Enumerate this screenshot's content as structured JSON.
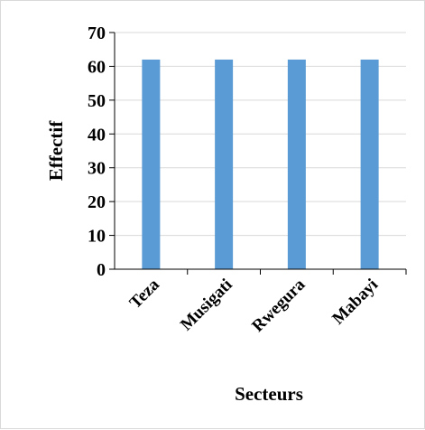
{
  "chart_data": {
    "type": "bar",
    "title": "",
    "xlabel": "Secteurs",
    "ylabel": "Effectif",
    "categories": [
      "Teza",
      "Musigati",
      "Rwegura",
      "Mabayi"
    ],
    "values": [
      62,
      62,
      62,
      62
    ],
    "ylim": [
      0,
      70
    ],
    "yticks": [
      0,
      10,
      20,
      30,
      40,
      50,
      60,
      70
    ],
    "grid": true,
    "legend": "none",
    "bar_color": "#5B9BD5",
    "grid_color": "#d9d9d9"
  }
}
